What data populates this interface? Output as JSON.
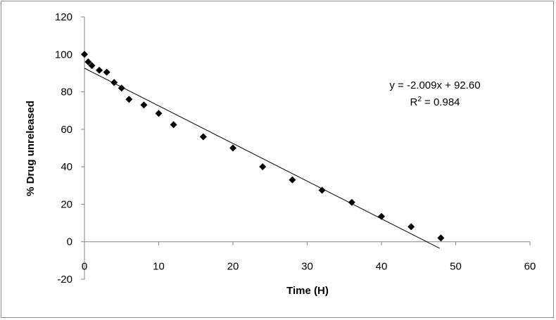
{
  "chart_data": {
    "type": "scatter",
    "xlabel": "Time (H)",
    "ylabel": "% Drug unreleased",
    "xlim": [
      0,
      60
    ],
    "ylim": [
      -20,
      120
    ],
    "x_ticks": [
      0,
      10,
      20,
      30,
      40,
      50,
      60
    ],
    "y_ticks": [
      -20,
      0,
      20,
      40,
      60,
      80,
      100,
      120
    ],
    "x_tick_labels": [
      "0",
      "10",
      "20",
      "30",
      "40",
      "50",
      "60"
    ],
    "y_tick_labels": [
      "-20",
      "0",
      "20",
      "40",
      "60",
      "80",
      "100",
      "120"
    ],
    "grid": false,
    "legend": "none",
    "marker": "diamond",
    "marker_color": "#000000",
    "series": [
      {
        "x": [
          0,
          0.5,
          1,
          2,
          3,
          4,
          5,
          6,
          8,
          10,
          12,
          16,
          20,
          24,
          28,
          32,
          36,
          40,
          44,
          48
        ],
        "y": [
          100,
          96,
          94,
          91.5,
          90.5,
          85,
          82,
          76,
          73,
          68.5,
          62.5,
          56,
          50,
          40,
          33,
          27.5,
          21,
          13.5,
          8,
          2
        ]
      }
    ],
    "trendline": {
      "type": "linear",
      "slope": -2.009,
      "intercept": 92.6,
      "x_range": [
        0,
        48
      ],
      "color": "#000000"
    },
    "annotations": {
      "equation": "y = -2.009x + 92.60",
      "r2_prefix": "R",
      "r2_sup": "2",
      "r2_value": " = 0.984"
    }
  }
}
